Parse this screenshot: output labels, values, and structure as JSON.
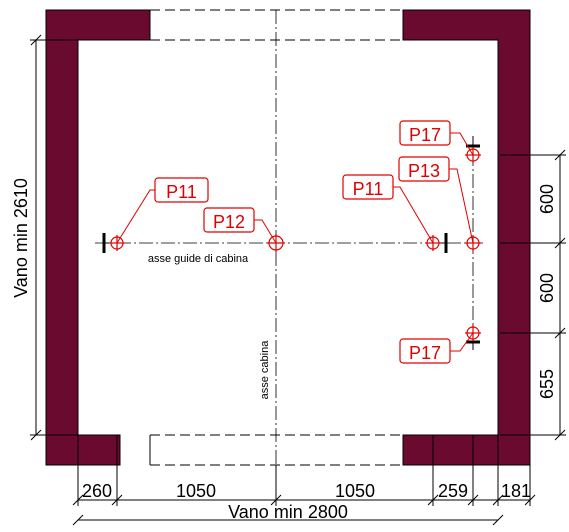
{
  "colors": {
    "wall": "#6b0a2f",
    "annotation": "#e00000",
    "line": "#000000"
  },
  "labels": {
    "p11_left": "P11",
    "p11_right": "P11",
    "p12": "P12",
    "p13": "P13",
    "p17_top": "P17",
    "p17_bottom": "P17",
    "guide_axis": "asse guide di cabina",
    "car_axis": "asse cabina"
  },
  "dimensions": {
    "vertical_total": "Vano min 2610",
    "horizontal_total": "Vano min 2800",
    "right_upper": "600",
    "right_middle": "600",
    "right_lower": "655",
    "bottom_left": "260",
    "bottom_center_left": "1050",
    "bottom_center_right": "1050",
    "bottom_right_inner": "259",
    "bottom_right_outer": "181"
  }
}
